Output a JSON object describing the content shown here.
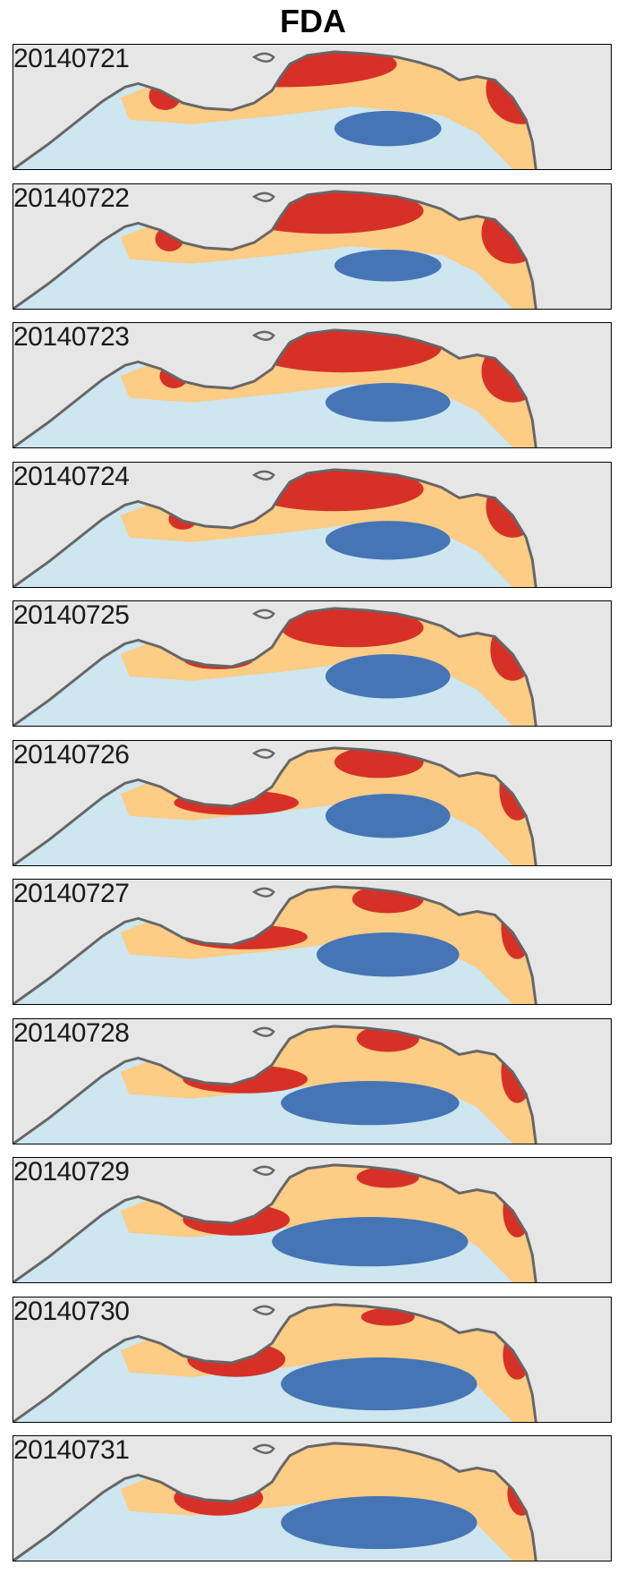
{
  "title": "FDA",
  "colors": {
    "land": "#e6e6e6",
    "coast": "#666666",
    "deep": "#4575b4",
    "light": "#cde6ef",
    "mid": "#fdcc85",
    "high": "#d73027"
  },
  "panels": [
    {
      "date": "20140721",
      "blooms": [
        {
          "x": 300,
          "y": 22,
          "rx": 130,
          "ry": 26,
          "level": "high"
        },
        {
          "x": 170,
          "y": 58,
          "rx": 18,
          "ry": 16,
          "level": "high"
        },
        {
          "x": 570,
          "y": 50,
          "rx": 40,
          "ry": 40,
          "level": "high"
        },
        {
          "x": 420,
          "y": 95,
          "rx": 60,
          "ry": 20,
          "level": "deep"
        }
      ]
    },
    {
      "date": "20140722",
      "blooms": [
        {
          "x": 350,
          "y": 30,
          "rx": 110,
          "ry": 26,
          "level": "high"
        },
        {
          "x": 175,
          "y": 62,
          "rx": 16,
          "ry": 14,
          "level": "high"
        },
        {
          "x": 560,
          "y": 55,
          "rx": 35,
          "ry": 35,
          "level": "high"
        },
        {
          "x": 420,
          "y": 92,
          "rx": 60,
          "ry": 18,
          "level": "deep"
        }
      ]
    },
    {
      "date": "20140723",
      "blooms": [
        {
          "x": 370,
          "y": 28,
          "rx": 110,
          "ry": 28,
          "level": "high"
        },
        {
          "x": 180,
          "y": 60,
          "rx": 16,
          "ry": 14,
          "level": "high"
        },
        {
          "x": 560,
          "y": 55,
          "rx": 35,
          "ry": 35,
          "level": "high"
        },
        {
          "x": 420,
          "y": 90,
          "rx": 70,
          "ry": 22,
          "level": "deep"
        }
      ]
    },
    {
      "date": "20140724",
      "blooms": [
        {
          "x": 360,
          "y": 30,
          "rx": 100,
          "ry": 25,
          "level": "high"
        },
        {
          "x": 190,
          "y": 64,
          "rx": 16,
          "ry": 12,
          "level": "high"
        },
        {
          "x": 560,
          "y": 50,
          "rx": 30,
          "ry": 35,
          "level": "high"
        },
        {
          "x": 420,
          "y": 88,
          "rx": 70,
          "ry": 22,
          "level": "deep"
        }
      ]
    },
    {
      "date": "20140725",
      "blooms": [
        {
          "x": 380,
          "y": 30,
          "rx": 80,
          "ry": 22,
          "level": "high"
        },
        {
          "x": 230,
          "y": 65,
          "rx": 40,
          "ry": 12,
          "level": "high"
        },
        {
          "x": 560,
          "y": 55,
          "rx": 25,
          "ry": 35,
          "level": "high"
        },
        {
          "x": 420,
          "y": 85,
          "rx": 70,
          "ry": 25,
          "level": "deep"
        }
      ]
    },
    {
      "date": "20140726",
      "blooms": [
        {
          "x": 410,
          "y": 24,
          "rx": 50,
          "ry": 18,
          "level": "high"
        },
        {
          "x": 250,
          "y": 70,
          "rx": 70,
          "ry": 14,
          "level": "high"
        },
        {
          "x": 565,
          "y": 55,
          "rx": 20,
          "ry": 35,
          "level": "high"
        },
        {
          "x": 420,
          "y": 85,
          "rx": 70,
          "ry": 25,
          "level": "deep"
        }
      ]
    },
    {
      "date": "20140727",
      "blooms": [
        {
          "x": 420,
          "y": 22,
          "rx": 40,
          "ry": 16,
          "level": "high"
        },
        {
          "x": 260,
          "y": 65,
          "rx": 70,
          "ry": 14,
          "level": "high"
        },
        {
          "x": 565,
          "y": 55,
          "rx": 18,
          "ry": 35,
          "level": "high"
        },
        {
          "x": 420,
          "y": 85,
          "rx": 80,
          "ry": 25,
          "level": "deep"
        }
      ]
    },
    {
      "date": "20140728",
      "blooms": [
        {
          "x": 420,
          "y": 22,
          "rx": 35,
          "ry": 15,
          "level": "high"
        },
        {
          "x": 260,
          "y": 68,
          "rx": 70,
          "ry": 16,
          "level": "high"
        },
        {
          "x": 565,
          "y": 60,
          "rx": 18,
          "ry": 35,
          "level": "high"
        },
        {
          "x": 400,
          "y": 95,
          "rx": 100,
          "ry": 25,
          "level": "deep"
        }
      ]
    },
    {
      "date": "20140729",
      "blooms": [
        {
          "x": 420,
          "y": 22,
          "rx": 35,
          "ry": 12,
          "level": "high"
        },
        {
          "x": 250,
          "y": 70,
          "rx": 60,
          "ry": 18,
          "level": "high"
        },
        {
          "x": 565,
          "y": 60,
          "rx": 16,
          "ry": 30,
          "level": "high"
        },
        {
          "x": 400,
          "y": 95,
          "rx": 110,
          "ry": 28,
          "level": "deep"
        }
      ]
    },
    {
      "date": "20140730",
      "blooms": [
        {
          "x": 420,
          "y": 22,
          "rx": 30,
          "ry": 10,
          "level": "high"
        },
        {
          "x": 250,
          "y": 70,
          "rx": 55,
          "ry": 20,
          "level": "high"
        },
        {
          "x": 565,
          "y": 65,
          "rx": 16,
          "ry": 28,
          "level": "high"
        },
        {
          "x": 410,
          "y": 98,
          "rx": 110,
          "ry": 30,
          "level": "deep"
        }
      ]
    },
    {
      "date": "20140731",
      "blooms": [
        {
          "x": 230,
          "y": 70,
          "rx": 50,
          "ry": 20,
          "level": "high"
        },
        {
          "x": 570,
          "y": 65,
          "rx": 16,
          "ry": 25,
          "level": "high"
        },
        {
          "x": 410,
          "y": 98,
          "rx": 110,
          "ry": 30,
          "level": "deep"
        }
      ]
    }
  ]
}
